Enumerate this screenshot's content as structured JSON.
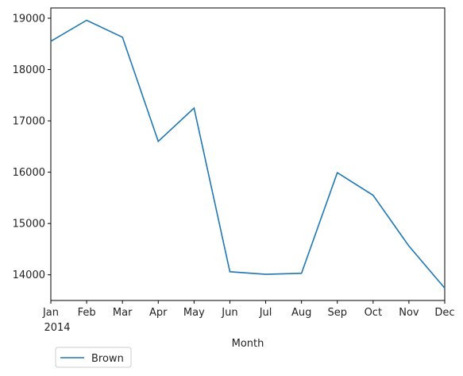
{
  "chart_data": {
    "type": "line",
    "x": [
      "Jan",
      "Feb",
      "Mar",
      "Apr",
      "May",
      "Jun",
      "Jul",
      "Aug",
      "Sep",
      "Oct",
      "Nov",
      "Dec"
    ],
    "year_label": "2014",
    "series": [
      {
        "name": "Brown",
        "color": "#1f77b4",
        "values": [
          18550,
          18960,
          18630,
          16600,
          17250,
          14060,
          14010,
          14030,
          15990,
          15550,
          14560,
          13740
        ]
      }
    ],
    "xlabel": "Month",
    "ylabel": "",
    "ylim": [
      13500,
      19200
    ],
    "yticks": [
      14000,
      15000,
      16000,
      17000,
      18000,
      19000
    ],
    "yticks_labels": [
      "14000",
      "15000",
      "16000",
      "17000",
      "18000",
      "19000"
    ],
    "grid": false,
    "legend_position": "below-left"
  }
}
